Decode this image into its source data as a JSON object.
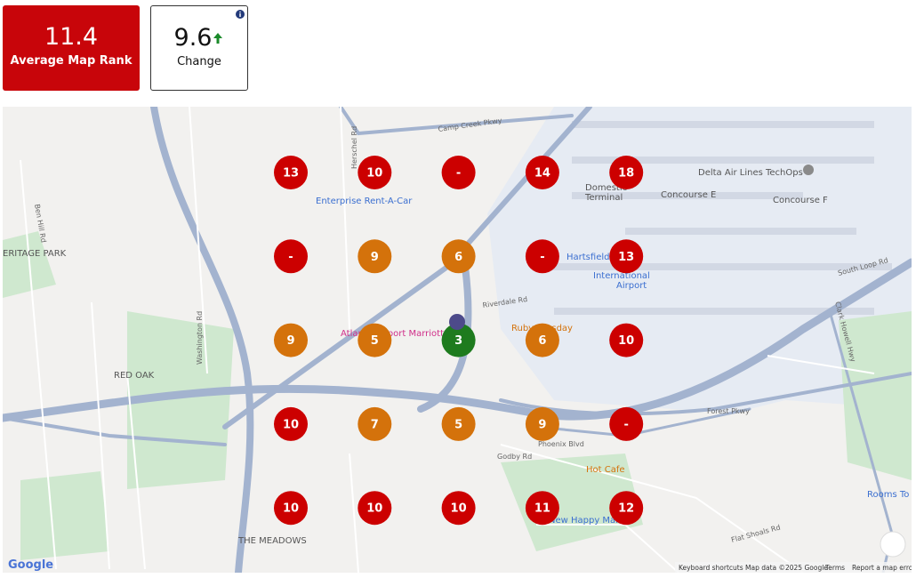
{
  "summary": {
    "average": {
      "value": "11.4",
      "label": "Average Map Rank"
    },
    "change": {
      "value": "9.6",
      "label": "Change"
    }
  },
  "grid": {
    "rows": [
      [
        {
          "rank": "13",
          "color": "#cc0000"
        },
        {
          "rank": "10",
          "color": "#cc0000"
        },
        {
          "rank": "-",
          "color": "#cc0000"
        },
        {
          "rank": "14",
          "color": "#cc0000"
        },
        {
          "rank": "18",
          "color": "#cc0000"
        }
      ],
      [
        {
          "rank": "-",
          "color": "#cc0000"
        },
        {
          "rank": "9",
          "color": "#d4720b"
        },
        {
          "rank": "6",
          "color": "#d4720b"
        },
        {
          "rank": "-",
          "color": "#cc0000"
        },
        {
          "rank": "13",
          "color": "#cc0000"
        }
      ],
      [
        {
          "rank": "9",
          "color": "#d4720b"
        },
        {
          "rank": "5",
          "color": "#d4720b"
        },
        {
          "rank": "3",
          "color": "#1e7b1e"
        },
        {
          "rank": "6",
          "color": "#d4720b"
        },
        {
          "rank": "10",
          "color": "#cc0000"
        }
      ],
      [
        {
          "rank": "10",
          "color": "#cc0000"
        },
        {
          "rank": "7",
          "color": "#d4720b"
        },
        {
          "rank": "5",
          "color": "#d4720b"
        },
        {
          "rank": "9",
          "color": "#d4720b"
        },
        {
          "rank": "-",
          "color": "#cc0000"
        }
      ],
      [
        {
          "rank": "10",
          "color": "#cc0000"
        },
        {
          "rank": "10",
          "color": "#cc0000"
        },
        {
          "rank": "10",
          "color": "#cc0000"
        },
        {
          "rank": "11",
          "color": "#cc0000"
        },
        {
          "rank": "12",
          "color": "#cc0000"
        }
      ]
    ]
  },
  "map": {
    "labels": [
      "Camp Creek Pkwy",
      "Delta Air Lines TechOps",
      "Domestic",
      "Terminal",
      "Concourse E",
      "Concourse F",
      "Enterprise Rent-A-Car",
      "ERITAGE PARK",
      "Hartsfield-",
      "International",
      "Airport",
      "RED OAK",
      "Atlanta Airport Marriott",
      "Ruby Tuesday",
      "Riverdale Rd",
      "Forest Pkwy",
      "Phoenix Blvd",
      "Godby Rd",
      "Hot Cafe",
      "New Happy Market",
      "THE MEADOWS",
      "Rooms To",
      "Herschel Rd",
      "Washington Rd",
      "Ben Hill Rd",
      "Clark Howell Hwy",
      "South Loop Rd",
      "Flat Shoals Rd"
    ],
    "footer": {
      "logo": "Google",
      "links": [
        "Keyboard shortcuts",
        "Map data ©2025 Google",
        "Terms",
        "Report a map error"
      ]
    }
  }
}
